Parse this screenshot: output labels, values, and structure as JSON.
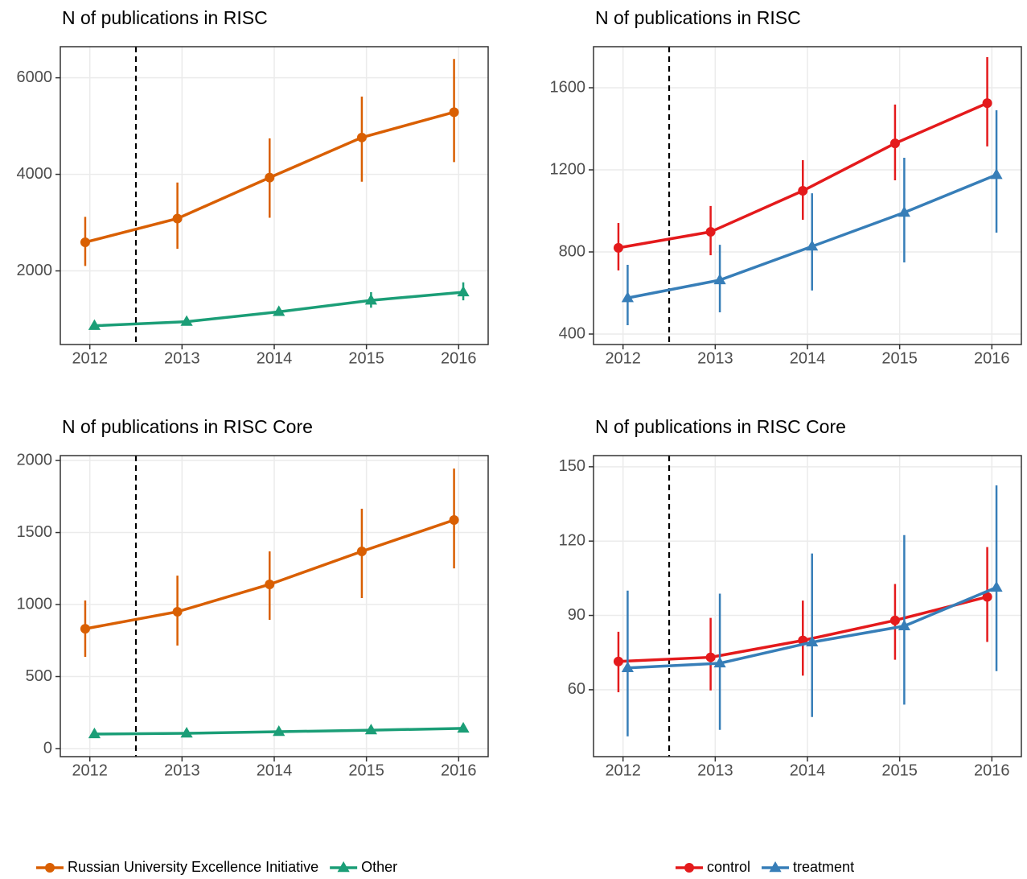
{
  "chart_data": [
    {
      "type": "line",
      "title": "N of publications in RISC",
      "xlim": [
        2011.68,
        2016.32
      ],
      "xticks": [
        2012,
        2013,
        2014,
        2015,
        2016
      ],
      "ylim": [
        475,
        6644
      ],
      "yticks": [
        2000,
        4000,
        6000
      ],
      "grid": true,
      "vline": 2012.5,
      "x": [
        2012,
        2013,
        2014,
        2015,
        2016
      ],
      "series": [
        {
          "color": "#d95f02",
          "marker": "circle",
          "values": [
            2593,
            3085,
            3932,
            4763,
            5288
          ],
          "lower": [
            2102,
            2458,
            3102,
            3847,
            4254
          ],
          "upper": [
            3119,
            3830,
            4746,
            5610,
            6390
          ]
        },
        {
          "color": "#1b9e77",
          "marker": "triangle",
          "values": [
            864,
            949,
            1153,
            1390,
            1559
          ],
          "lower": [
            830,
            915,
            1100,
            1237,
            1390
          ],
          "upper": [
            900,
            985,
            1210,
            1559,
            1763
          ]
        }
      ]
    },
    {
      "type": "line",
      "title": "N of publications in RISC",
      "xlim": [
        2011.68,
        2016.32
      ],
      "xticks": [
        2012,
        2013,
        2014,
        2015,
        2016
      ],
      "ylim": [
        349,
        1800
      ],
      "yticks": [
        400,
        800,
        1200,
        1600
      ],
      "grid": true,
      "vline": 2012.5,
      "x": [
        2012,
        2013,
        2014,
        2015,
        2016
      ],
      "series": [
        {
          "color": "#e41a1c",
          "marker": "circle",
          "values": [
            820,
            898,
            1098,
            1329,
            1525
          ],
          "lower": [
            710,
            784,
            957,
            1149,
            1314
          ],
          "upper": [
            941,
            1024,
            1247,
            1518,
            1749
          ]
        },
        {
          "color": "#377eb8",
          "marker": "triangle",
          "values": [
            576,
            663,
            827,
            992,
            1176
          ],
          "lower": [
            443,
            506,
            612,
            749,
            894
          ],
          "upper": [
            737,
            835,
            1086,
            1259,
            1490
          ]
        }
      ]
    },
    {
      "type": "line",
      "title": "N of publications in RISC Core",
      "xlim": [
        2011.68,
        2016.32
      ],
      "xticks": [
        2012,
        2013,
        2014,
        2015,
        2016
      ],
      "ylim": [
        -56,
        2034
      ],
      "yticks": [
        0,
        500,
        1000,
        1500,
        2000
      ],
      "grid": true,
      "vline": 2012.5,
      "x": [
        2012,
        2013,
        2014,
        2015,
        2016
      ],
      "series": [
        {
          "name": "Russian University Excellence Initiative",
          "color": "#d95f02",
          "marker": "circle",
          "values": [
            832,
            950,
            1140,
            1369,
            1587
          ],
          "lower": [
            637,
            715,
            894,
            1045,
            1251
          ],
          "upper": [
            1028,
            1201,
            1369,
            1665,
            1944
          ]
        },
        {
          "name": "Other",
          "color": "#1b9e77",
          "marker": "triangle",
          "values": [
            101,
            106,
            117,
            128,
            140
          ],
          "lower": [
            92,
            97,
            107,
            117,
            128
          ],
          "upper": [
            110,
            115,
            127,
            139,
            152
          ]
        }
      ]
    },
    {
      "type": "line",
      "title": "N of publications in RISC Core",
      "xlim": [
        2011.68,
        2016.32
      ],
      "xticks": [
        2012,
        2013,
        2014,
        2015,
        2016
      ],
      "ylim": [
        33,
        154.5
      ],
      "yticks": [
        60,
        90,
        120,
        150
      ],
      "grid": true,
      "vline": 2012.5,
      "x": [
        2012,
        2013,
        2014,
        2015,
        2016
      ],
      "series": [
        {
          "name": "control",
          "color": "#e41a1c",
          "marker": "circle",
          "values": [
            71.4,
            73.1,
            79.9,
            88.0,
            97.5
          ],
          "lower": [
            59,
            59.7,
            65.7,
            72.1,
            79.3
          ],
          "upper": [
            83.4,
            89,
            96,
            102.7,
            117.6
          ]
        },
        {
          "name": "treatment",
          "color": "#377eb8",
          "marker": "triangle",
          "values": [
            68.8,
            70.7,
            79.2,
            85.7,
            101.3
          ],
          "lower": [
            41.2,
            43.8,
            49,
            54,
            67.5
          ],
          "upper": [
            100,
            98.8,
            115,
            122.4,
            142.5
          ]
        }
      ]
    }
  ]
}
